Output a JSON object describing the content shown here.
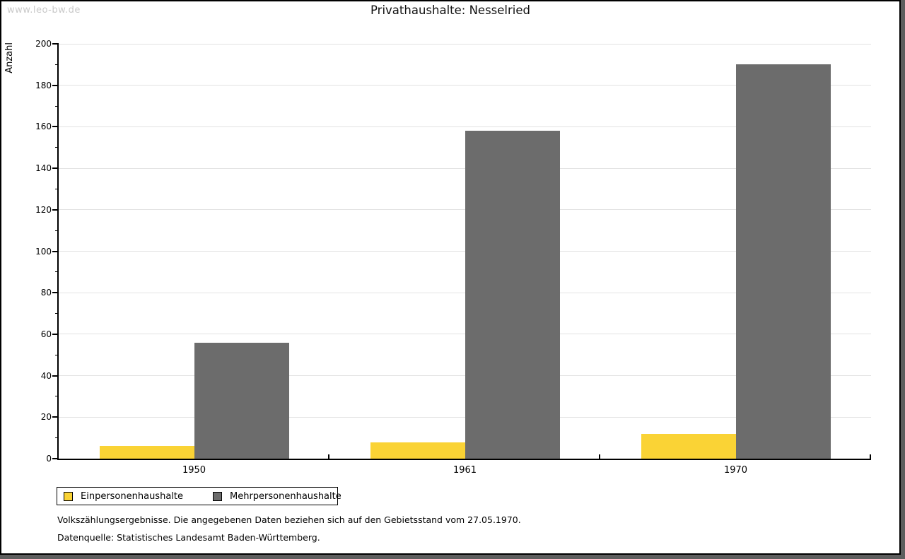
{
  "watermark": "www.leo-bw.de",
  "chart_data": {
    "type": "bar",
    "title": "Privathaushalte: Nesselried",
    "ylabel": "Anzahl",
    "xlabel": "",
    "categories": [
      "1950",
      "1961",
      "1970"
    ],
    "series": [
      {
        "name": "Einpersonenhaushalte",
        "color": "#FAD335",
        "values": [
          6,
          8,
          12
        ]
      },
      {
        "name": "Mehrpersonenhaushalte",
        "color": "#6C6C6C",
        "values": [
          56,
          158,
          190
        ]
      }
    ],
    "ylim": [
      0,
      200
    ],
    "ytick_major": 20,
    "ytick_minor": 10,
    "grid": true,
    "legend_position": "bottom-left"
  },
  "footnotes": [
    "Volkszählungsergebnisse. Die angegebenen Daten beziehen sich auf den Gebietsstand vom 27.05.1970.",
    "Datenquelle: Statistisches Landesamt Baden-Württemberg."
  ]
}
